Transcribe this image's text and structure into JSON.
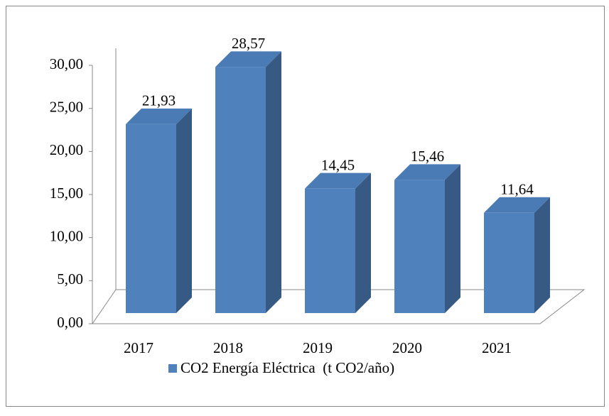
{
  "chart_data": {
    "type": "bar3d",
    "categories": [
      "2017",
      "2018",
      "2019",
      "2020",
      "2021"
    ],
    "series": [
      {
        "name": "CO2 Energía Eléctrica  (t CO2/año)",
        "color": "#4f81bd",
        "values": [
          21.93,
          28.57,
          14.45,
          15.46,
          11.64
        ],
        "value_labels": [
          "21,93",
          "28,57",
          "14,45",
          "15,46",
          "11,64"
        ]
      }
    ],
    "ylim": [
      0,
      30
    ],
    "yticks": [
      {
        "value": 0,
        "label": "0,00"
      },
      {
        "value": 5,
        "label": "5,00"
      },
      {
        "value": 10,
        "label": "10,00"
      },
      {
        "value": 15,
        "label": "15,00"
      },
      {
        "value": 20,
        "label": "20,00"
      },
      {
        "value": 25,
        "label": "25,00"
      },
      {
        "value": 30,
        "label": "30,00"
      }
    ],
    "grid": false,
    "legend": "bottom"
  }
}
